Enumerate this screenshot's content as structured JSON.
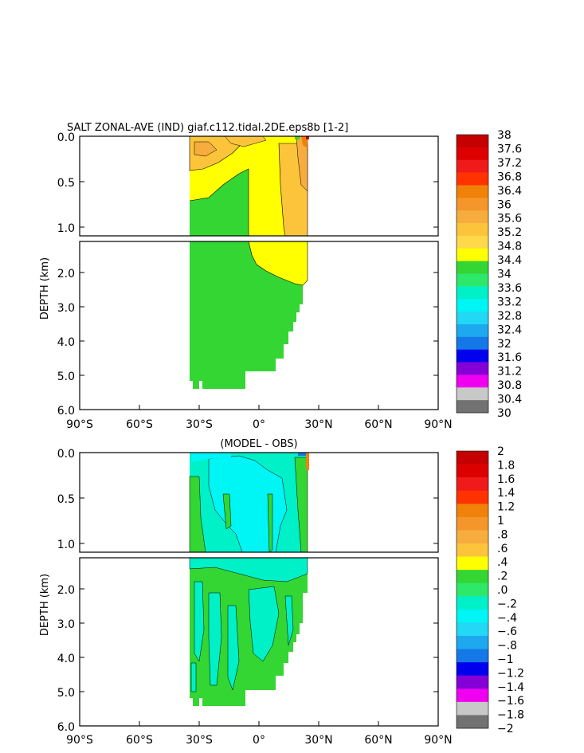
{
  "panels": [
    {
      "title": "SALT ZONAL-AVE (IND) giaf.c112.tidal.2DE.eps8b [1-2]",
      "ylabel": "DEPTH (km)",
      "upper_ticks": [
        "0.0",
        "0.5",
        "1.0"
      ],
      "lower_ticks": [
        "2.0",
        "3.0",
        "4.0",
        "5.0",
        "6.0"
      ],
      "x_ticks": [
        "90°S",
        "60°S",
        "30°S",
        "0°",
        "30°N",
        "60°N",
        "90°N"
      ],
      "colorbar": {
        "labels": [
          "38",
          "37.6",
          "37.2",
          "36.8",
          "36.4",
          "36",
          "35.6",
          "35.2",
          "34.8",
          "34.4",
          "34",
          "33.6",
          "33.2",
          "32.8",
          "32.4",
          "32",
          "31.6",
          "31.2",
          "30.8",
          "30.4",
          "30"
        ],
        "colors": [
          "#c40000",
          "#dc0000",
          "#f01a1a",
          "#ff3300",
          "#f0820a",
          "#f5962a",
          "#f7ac3e",
          "#fbc43a",
          "#ffd94a",
          "#ffff00",
          "#33d633",
          "#2ee86a",
          "#00f0c8",
          "#00f5f5",
          "#22d8f5",
          "#1ea8f0",
          "#1478e6",
          "#0000ee",
          "#8400d6",
          "#f000f0",
          "#c8c8c8",
          "#727272"
        ]
      },
      "fill_colors": {
        "green": "#33d633",
        "yellow": "#ffff00",
        "lightorange": "#fbc43a",
        "orange": "#f7ac3e"
      }
    },
    {
      "title": "(MODEL - OBS)",
      "ylabel": "DEPTH (km)",
      "upper_ticks": [
        "0.0",
        "0.5",
        "1.0"
      ],
      "lower_ticks": [
        "2.0",
        "3.0",
        "4.0",
        "5.0",
        "6.0"
      ],
      "x_ticks": [
        "90°S",
        "60°S",
        "30°S",
        "0°",
        "30°N",
        "60°N",
        "90°N"
      ],
      "colorbar": {
        "labels": [
          "2",
          "1.8",
          "1.6",
          "1.4",
          "1.2",
          "1",
          ".8",
          ".6",
          ".4",
          ".2",
          ".0",
          "-.2",
          "-.4",
          "-.6",
          "-.8",
          "-1",
          "-1.2",
          "-1.4",
          "-1.6",
          "-1.8",
          "-2"
        ],
        "colors": [
          "#c40000",
          "#dc0000",
          "#f01a1a",
          "#ff3300",
          "#f0820a",
          "#f5962a",
          "#f7ac3e",
          "#fbc43a",
          "#ffff00",
          "#33d633",
          "#2ee86a",
          "#00f0c8",
          "#00f5f5",
          "#22d8f5",
          "#1ea8f0",
          "#1478e6",
          "#0000ee",
          "#8400d6",
          "#f000f0",
          "#c8c8c8",
          "#727272"
        ]
      },
      "fill_colors": {
        "green": "#33d633",
        "cyan": "#00f0c8",
        "lightcyan": "#00f5f5"
      }
    }
  ],
  "chart_data": [
    {
      "type": "heatmap",
      "title": "SALT ZONAL-AVE (IND) giaf.c112.tidal.2DE.eps8b [1-2]",
      "xlabel": "",
      "ylabel": "DEPTH (km)",
      "x_range": [
        "90°S",
        "90°N"
      ],
      "y_range_km": [
        0,
        6
      ],
      "upper_range_km": [
        0,
        1.1
      ],
      "lower_range_km": [
        1.1,
        6
      ],
      "levels": [
        30,
        30.4,
        30.8,
        31.2,
        31.6,
        32,
        32.4,
        32.8,
        33.2,
        33.6,
        34,
        34.4,
        34.8,
        35.2,
        35.6,
        36,
        36.4,
        36.8,
        37.2,
        37.6,
        38
      ]
    },
    {
      "type": "heatmap",
      "title": "(MODEL - OBS)",
      "xlabel": "",
      "ylabel": "DEPTH (km)",
      "x_range": [
        "90°S",
        "90°N"
      ],
      "y_range_km": [
        0,
        6
      ],
      "upper_range_km": [
        0,
        1.1
      ],
      "lower_range_km": [
        1.1,
        6
      ],
      "levels": [
        -2,
        -1.8,
        -1.6,
        -1.4,
        -1.2,
        -1,
        -0.8,
        -0.6,
        -0.4,
        -0.2,
        0,
        0.2,
        0.4,
        0.6,
        0.8,
        1,
        1.2,
        1.4,
        1.6,
        1.8,
        2
      ]
    }
  ]
}
